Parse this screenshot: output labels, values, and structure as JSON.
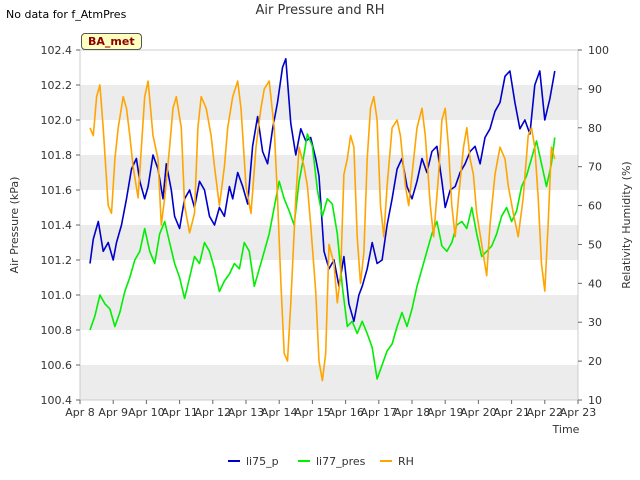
{
  "header": {
    "no_data_note": "No data for f_AtmPres",
    "site_badge": "BA_met"
  },
  "colors": {
    "li75_p": "#0000cc",
    "li77_pres": "#00ee00",
    "RH": "#ffa500",
    "band": "#ececec"
  },
  "chart_data": {
    "type": "line",
    "title": "Air Pressure and RH",
    "xlabel": "Time",
    "ylabel": "Air Pressure (kPa)",
    "y2label": "Relativity Humidity (%)",
    "xticks": [
      "Apr 8",
      "Apr 9",
      "Apr 10",
      "Apr 11",
      "Apr 12",
      "Apr 13",
      "Apr 14",
      "Apr 15",
      "Apr 16",
      "Apr 17",
      "Apr 18",
      "Apr 19",
      "Apr 20",
      "Apr 21",
      "Apr 22",
      "Apr 23"
    ],
    "xlim": [
      0,
      15
    ],
    "ylim": [
      100.4,
      102.4
    ],
    "yticks": [
      "100.4",
      "100.6",
      "100.8",
      "101.0",
      "101.2",
      "101.4",
      "101.6",
      "101.8",
      "102.0",
      "102.2",
      "102.4"
    ],
    "y2lim": [
      10,
      100
    ],
    "y2ticks": [
      "10",
      "20",
      "30",
      "40",
      "50",
      "60",
      "70",
      "80",
      "90",
      "100"
    ],
    "legend": [
      "li75_p",
      "li77_pres",
      "RH"
    ],
    "series": [
      {
        "name": "li75_p",
        "axis": "left",
        "x": [
          0.3,
          0.4,
          0.55,
          0.7,
          0.85,
          1.0,
          1.1,
          1.25,
          1.4,
          1.55,
          1.7,
          1.8,
          1.95,
          2.05,
          2.2,
          2.35,
          2.5,
          2.6,
          2.75,
          2.85,
          3.0,
          3.15,
          3.3,
          3.45,
          3.6,
          3.75,
          3.9,
          4.05,
          4.2,
          4.35,
          4.5,
          4.6,
          4.75,
          4.9,
          5.05,
          5.2,
          5.35,
          5.5,
          5.65,
          5.8,
          5.95,
          6.1,
          6.2,
          6.35,
          6.5,
          6.65,
          6.8,
          6.95,
          7.1,
          7.2,
          7.35,
          7.5,
          7.65,
          7.8,
          7.95,
          8.1,
          8.25,
          8.4,
          8.5,
          8.65,
          8.8,
          8.95,
          9.1,
          9.25,
          9.4,
          9.55,
          9.7,
          9.85,
          10.0,
          10.15,
          10.3,
          10.45,
          10.6,
          10.75,
          10.9,
          11.0,
          11.15,
          11.3,
          11.45,
          11.6,
          11.75,
          11.9,
          12.05,
          12.2,
          12.35,
          12.5,
          12.65,
          12.8,
          12.95,
          13.1,
          13.25,
          13.4,
          13.55,
          13.7,
          13.85,
          14.0,
          14.15,
          14.3
        ],
        "values": [
          101.18,
          101.32,
          101.42,
          101.25,
          101.3,
          101.2,
          101.3,
          101.4,
          101.55,
          101.72,
          101.78,
          101.65,
          101.55,
          101.62,
          101.8,
          101.72,
          101.55,
          101.75,
          101.6,
          101.45,
          101.38,
          101.55,
          101.6,
          101.5,
          101.65,
          101.6,
          101.45,
          101.4,
          101.5,
          101.45,
          101.62,
          101.55,
          101.7,
          101.62,
          101.52,
          101.85,
          102.02,
          101.82,
          101.75,
          101.95,
          102.1,
          102.3,
          102.35,
          101.98,
          101.8,
          101.95,
          101.88,
          101.9,
          101.78,
          101.68,
          101.25,
          101.15,
          101.2,
          101.05,
          101.22,
          100.95,
          100.85,
          101.0,
          101.05,
          101.15,
          101.3,
          101.18,
          101.2,
          101.4,
          101.55,
          101.72,
          101.78,
          101.62,
          101.55,
          101.65,
          101.78,
          101.7,
          101.82,
          101.85,
          101.65,
          101.5,
          101.6,
          101.62,
          101.7,
          101.75,
          101.82,
          101.85,
          101.75,
          101.9,
          101.95,
          102.05,
          102.1,
          102.25,
          102.28,
          102.1,
          101.95,
          102.0,
          101.92,
          102.2,
          102.28,
          102.0,
          102.12,
          102.28
        ]
      },
      {
        "name": "li77_pres",
        "axis": "left",
        "x": [
          0.3,
          0.45,
          0.6,
          0.75,
          0.9,
          1.05,
          1.2,
          1.35,
          1.5,
          1.65,
          1.8,
          1.95,
          2.1,
          2.25,
          2.4,
          2.55,
          2.7,
          2.85,
          3.0,
          3.15,
          3.3,
          3.45,
          3.6,
          3.75,
          3.9,
          4.05,
          4.2,
          4.35,
          4.5,
          4.65,
          4.8,
          4.95,
          5.1,
          5.25,
          5.4,
          5.55,
          5.7,
          5.85,
          6.0,
          6.15,
          6.3,
          6.45,
          6.6,
          6.7,
          6.85,
          7.0,
          7.15,
          7.3,
          7.45,
          7.6,
          7.75,
          7.9,
          8.05,
          8.2,
          8.35,
          8.5,
          8.65,
          8.8,
          8.95,
          9.1,
          9.25,
          9.4,
          9.55,
          9.7,
          9.85,
          10.0,
          10.15,
          10.3,
          10.45,
          10.6,
          10.75,
          10.9,
          11.05,
          11.2,
          11.35,
          11.5,
          11.65,
          11.8,
          11.95,
          12.1,
          12.25,
          12.4,
          12.55,
          12.7,
          12.85,
          13.0,
          13.15,
          13.3,
          13.45,
          13.6,
          13.75,
          13.9,
          14.05,
          14.2,
          14.3
        ],
        "values": [
          100.8,
          100.88,
          101.0,
          100.95,
          100.92,
          100.82,
          100.9,
          101.02,
          101.1,
          101.2,
          101.25,
          101.38,
          101.25,
          101.18,
          101.35,
          101.42,
          101.3,
          101.18,
          101.1,
          100.98,
          101.1,
          101.22,
          101.18,
          101.3,
          101.25,
          101.15,
          101.02,
          101.08,
          101.12,
          101.18,
          101.15,
          101.3,
          101.25,
          101.05,
          101.15,
          101.25,
          101.35,
          101.5,
          101.65,
          101.55,
          101.48,
          101.4,
          101.65,
          101.75,
          101.92,
          101.85,
          101.6,
          101.45,
          101.55,
          101.52,
          101.35,
          101.05,
          100.82,
          100.85,
          100.78,
          100.85,
          100.78,
          100.7,
          100.52,
          100.6,
          100.68,
          100.72,
          100.82,
          100.9,
          100.82,
          100.92,
          101.05,
          101.15,
          101.25,
          101.35,
          101.42,
          101.28,
          101.25,
          101.3,
          101.4,
          101.42,
          101.38,
          101.5,
          101.35,
          101.22,
          101.25,
          101.28,
          101.35,
          101.45,
          101.5,
          101.42,
          101.48,
          101.62,
          101.68,
          101.78,
          101.88,
          101.75,
          101.62,
          101.75,
          101.9
        ]
      },
      {
        "name": "RH",
        "axis": "right",
        "x": [
          0.3,
          0.4,
          0.5,
          0.6,
          0.7,
          0.85,
          0.95,
          1.05,
          1.15,
          1.3,
          1.4,
          1.5,
          1.6,
          1.75,
          1.85,
          1.95,
          2.05,
          2.2,
          2.35,
          2.45,
          2.55,
          2.7,
          2.8,
          2.9,
          3.05,
          3.15,
          3.3,
          3.45,
          3.55,
          3.65,
          3.8,
          3.95,
          4.05,
          4.2,
          4.35,
          4.45,
          4.6,
          4.75,
          4.85,
          5.0,
          5.15,
          5.3,
          5.45,
          5.55,
          5.7,
          5.85,
          5.95,
          6.05,
          6.15,
          6.25,
          6.35,
          6.5,
          6.6,
          6.75,
          6.85,
          6.95,
          7.1,
          7.2,
          7.3,
          7.4,
          7.5,
          7.65,
          7.75,
          7.85,
          7.95,
          8.05,
          8.15,
          8.25,
          8.35,
          8.45,
          8.55,
          8.65,
          8.75,
          8.85,
          8.95,
          9.05,
          9.15,
          9.25,
          9.4,
          9.55,
          9.65,
          9.8,
          9.9,
          10.05,
          10.15,
          10.3,
          10.4,
          10.55,
          10.65,
          10.8,
          10.9,
          11.0,
          11.1,
          11.2,
          11.3,
          11.4,
          11.55,
          11.65,
          11.75,
          11.85,
          11.95,
          12.1,
          12.25,
          12.35,
          12.5,
          12.65,
          12.8,
          12.9,
          13.05,
          13.2,
          13.35,
          13.5,
          13.6,
          13.7,
          13.8,
          13.9,
          14.0,
          14.1,
          14.2,
          14.3
        ],
        "values": [
          80,
          78,
          88,
          91,
          80,
          60,
          58,
          72,
          80,
          88,
          85,
          78,
          70,
          62,
          75,
          88,
          92,
          78,
          72,
          55,
          62,
          75,
          85,
          88,
          80,
          60,
          53,
          58,
          80,
          88,
          85,
          78,
          70,
          60,
          70,
          80,
          88,
          92,
          85,
          65,
          58,
          75,
          85,
          90,
          92,
          80,
          62,
          40,
          22,
          20,
          35,
          62,
          75,
          70,
          65,
          55,
          38,
          20,
          15,
          22,
          50,
          45,
          35,
          42,
          68,
          72,
          78,
          75,
          52,
          40,
          48,
          72,
          85,
          88,
          82,
          60,
          52,
          65,
          80,
          82,
          78,
          65,
          60,
          72,
          80,
          85,
          78,
          60,
          52,
          68,
          82,
          85,
          75,
          60,
          52,
          62,
          75,
          80,
          72,
          68,
          58,
          50,
          42,
          55,
          68,
          75,
          72,
          65,
          58,
          52,
          62,
          78,
          80,
          75,
          62,
          45,
          38,
          55,
          75,
          72
        ]
      }
    ]
  }
}
